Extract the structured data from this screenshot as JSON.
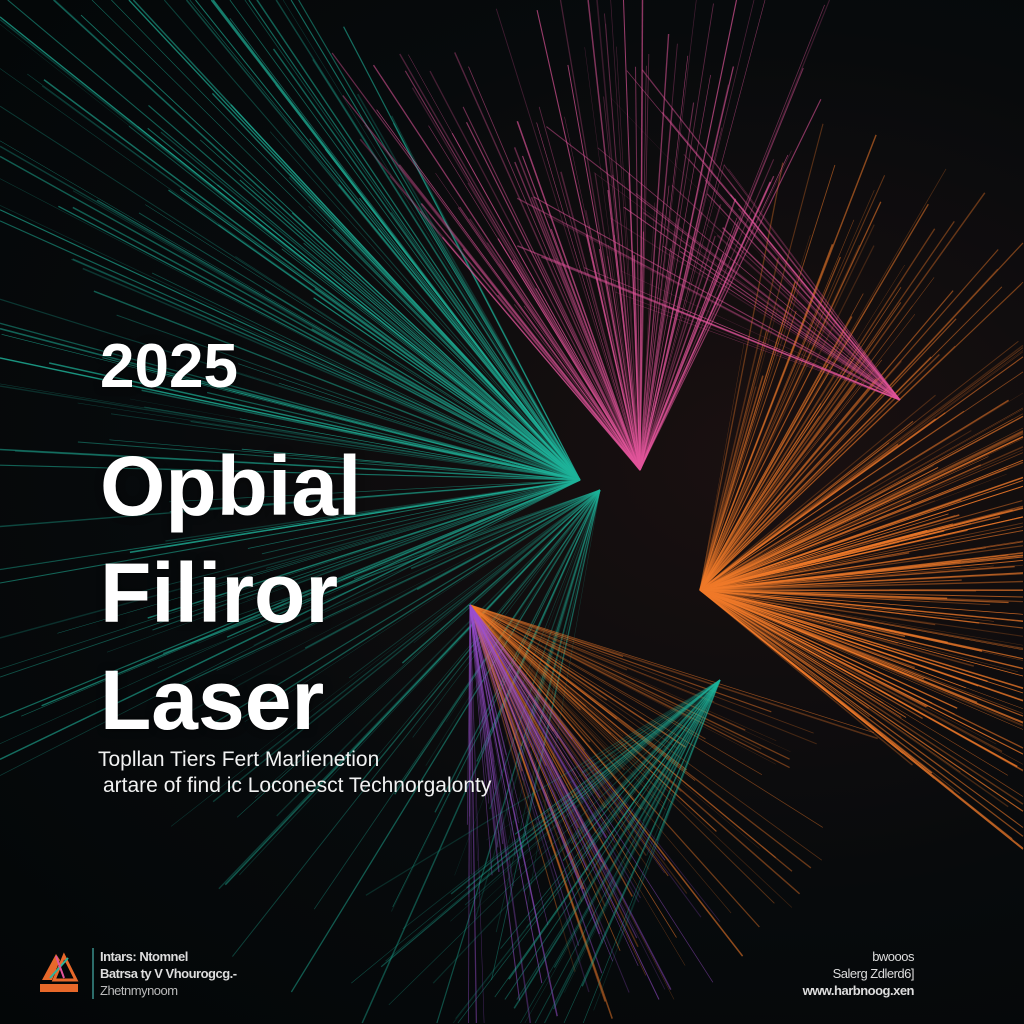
{
  "title": {
    "year": "2025",
    "line1": "Opbial",
    "line2": "Filiror",
    "line3": "Laser"
  },
  "subtitle": {
    "line1": "Topllan Tiers Fert Marlienetion",
    "line2": "artare of find ic Loconesct Technorgalonty"
  },
  "footer_left": {
    "logo": "organization-logo",
    "line1": "Intars: Ntomnel",
    "line2": "Batrsa ty V Vhourogcg.-",
    "line3": "Zhetnmynoom"
  },
  "footer_right": {
    "line1": "bwooos",
    "line2": "Salerg Zdlerd6]",
    "line3": "www.harbnoog.xen"
  },
  "colors": {
    "teal": "#1fb39a",
    "pink": "#e2559b",
    "orange": "#f07a2a",
    "purple": "#9b4fd0",
    "background": "#05090b"
  }
}
